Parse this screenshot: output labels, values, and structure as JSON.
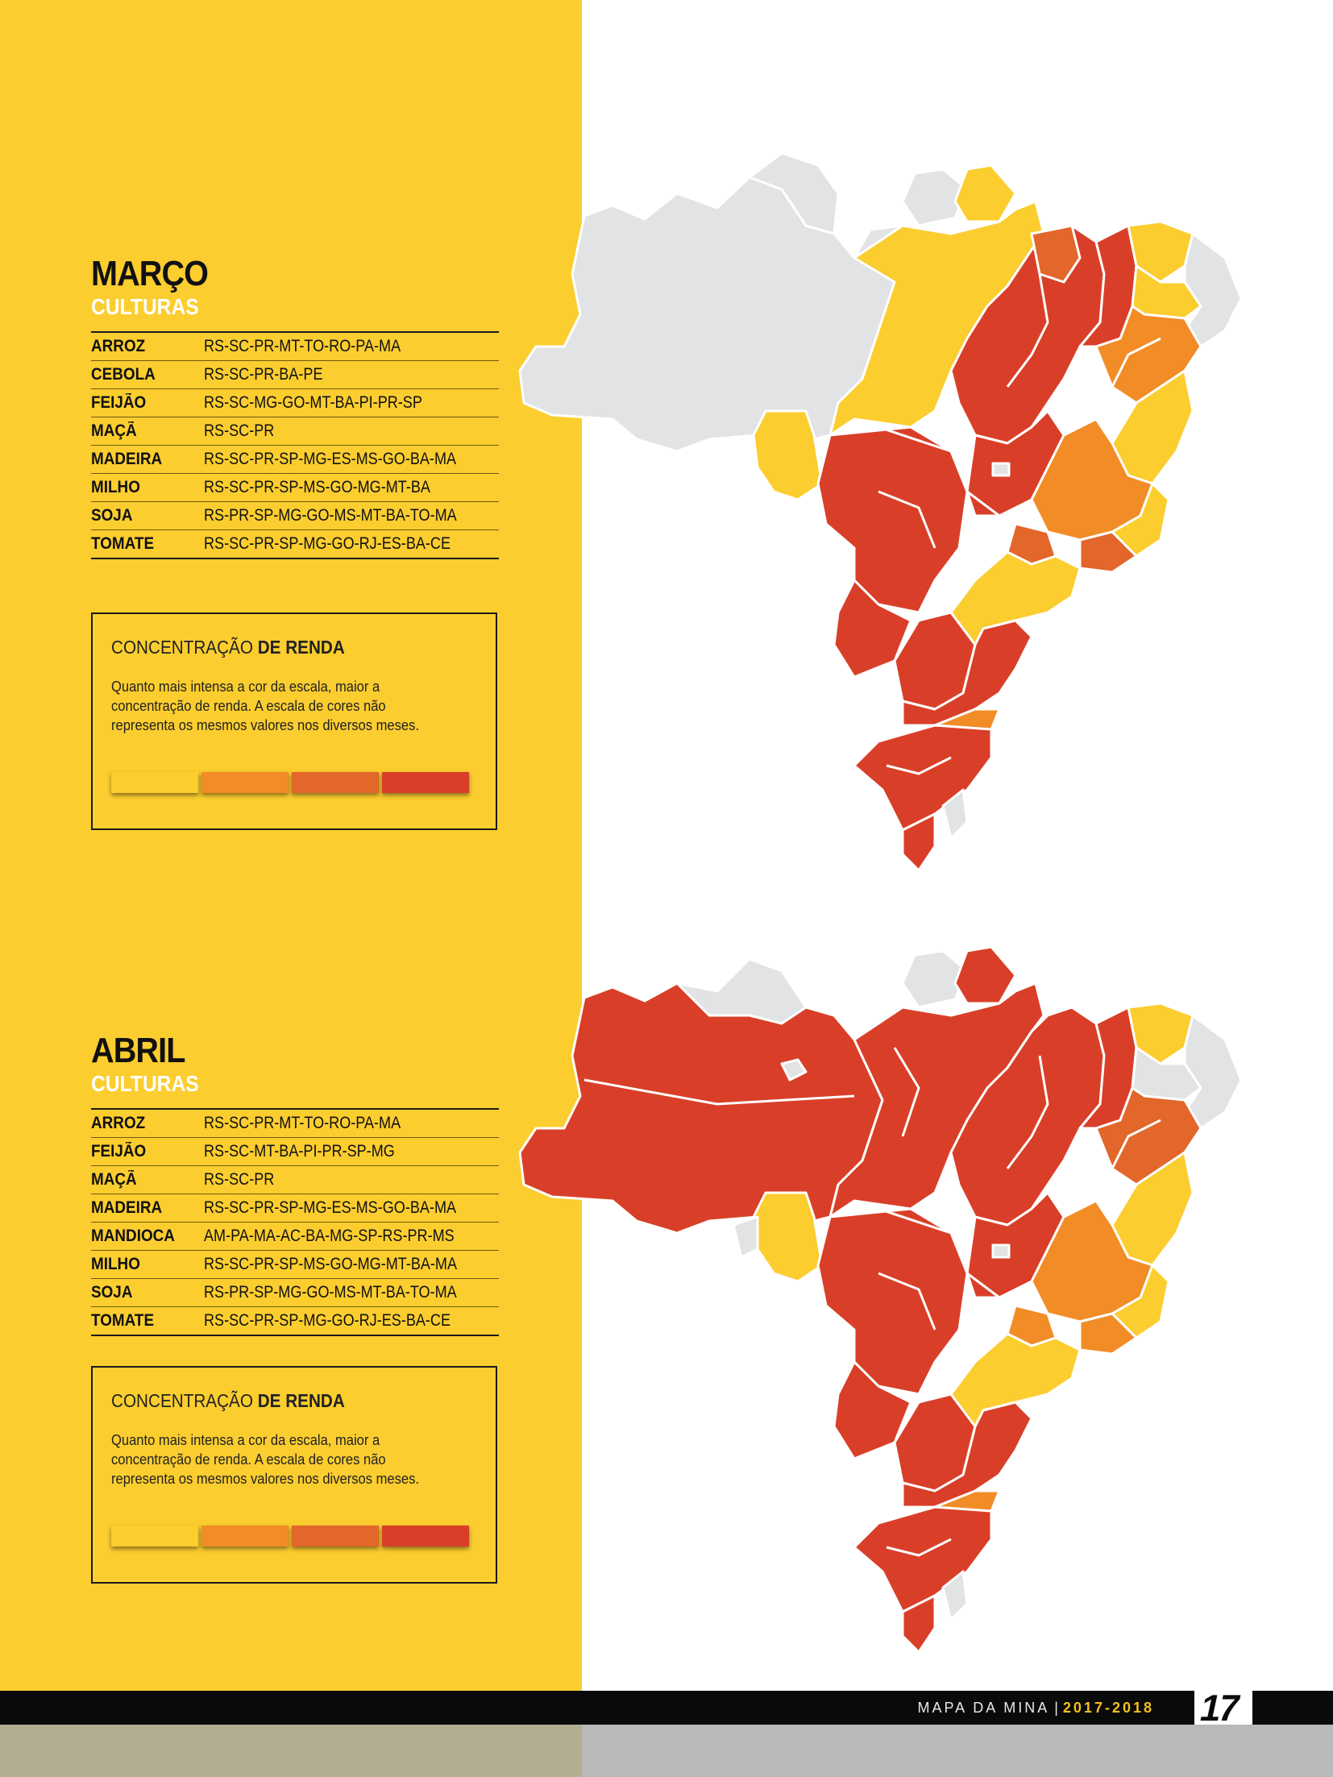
{
  "colors": {
    "panel": "#fbcd2f",
    "scale": [
      "#fbcd2f",
      "#f28c26",
      "#e3662a",
      "#d93f28"
    ],
    "no_data": "#e2e3e5"
  },
  "maps": [
    {
      "title": "MARÇO",
      "subtitle": "CULTURAS",
      "crops": [
        {
          "name": "ARROZ",
          "states": "RS-SC-PR-MT-TO-RO-PA-MA"
        },
        {
          "name": "CEBOLA",
          "states": "RS-SC-PR-BA-PE"
        },
        {
          "name": "FEIJÃO",
          "states": "RS-SC-MG-GO-MT-BA-PI-PR-SP"
        },
        {
          "name": "MAÇÃ",
          "states": "RS-SC-PR"
        },
        {
          "name": "MADEIRA",
          "states": "RS-SC-PR-SP-MG-ES-MS-GO-BA-MA"
        },
        {
          "name": "MILHO",
          "states": "RS-SC-PR-SP-MS-GO-MG-MT-BA"
        },
        {
          "name": "SOJA",
          "states": "RS-PR-SP-MG-GO-MS-MT-BA-TO-MA"
        },
        {
          "name": "TOMATE",
          "states": "RS-SC-PR-SP-MG-GO-RJ-ES-BA-CE"
        }
      ],
      "legend": {
        "title_light": "CONCENTRAÇÃO ",
        "title_bold": "DE RENDA",
        "text": "Quanto mais intensa a cor da escala, maior a concentração de renda. A escala de cores não representa os mesmos valores nos diversos meses."
      }
    },
    {
      "title": "ABRIL",
      "subtitle": "CULTURAS",
      "crops": [
        {
          "name": "ARROZ",
          "states": "RS-SC-PR-MT-TO-RO-PA-MA"
        },
        {
          "name": "FEIJÃO",
          "states": "RS-SC-MT-BA-PI-PR-SP-MG"
        },
        {
          "name": "MAÇÃ",
          "states": "RS-SC-PR"
        },
        {
          "name": "MADEIRA",
          "states": "RS-SC-PR-SP-MG-ES-MS-GO-BA-MA"
        },
        {
          "name": "MANDIOCA",
          "states": "AM-PA-MA-AC-BA-MG-SP-RS-PR-MS"
        },
        {
          "name": "MILHO",
          "states": "RS-SC-PR-SP-MS-GO-MG-MT-BA-MA"
        },
        {
          "name": "SOJA",
          "states": "RS-PR-SP-MG-GO-MS-MT-BA-TO-MA"
        },
        {
          "name": "TOMATE",
          "states": "RS-SC-PR-SP-MG-GO-RJ-ES-BA-CE"
        }
      ],
      "legend": {
        "title_light": "CONCENTRAÇÃO ",
        "title_bold": "DE RENDA",
        "text": "Quanto mais intensa a cor da escala, maior a concentração de renda. A escala de cores não representa os mesmos valores nos diversos meses."
      }
    }
  ],
  "footer": {
    "publication": "MAPA DA MINA",
    "divider": "|",
    "years": "2017-2018",
    "page_number": "17"
  }
}
